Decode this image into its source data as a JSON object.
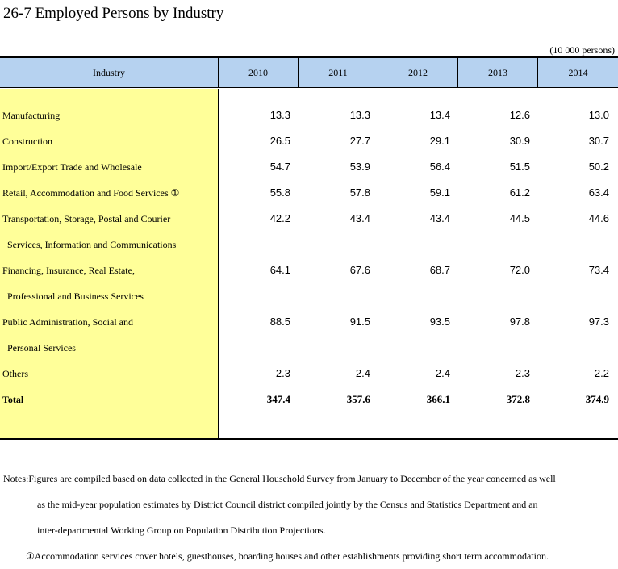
{
  "title": "26-7  Employed Persons by Industry",
  "unit": "(10 000 persons)",
  "table": {
    "header_industry": "Industry",
    "years": [
      "2010",
      "2011",
      "2012",
      "2013",
      "2014"
    ],
    "rows": [
      {
        "label": "Manufacturing",
        "label2": "",
        "values": [
          "13.3",
          "13.3",
          "13.4",
          "12.6",
          "13.0"
        ]
      },
      {
        "label": "Construction",
        "label2": "",
        "values": [
          "26.5",
          "27.7",
          "29.1",
          "30.9",
          "30.7"
        ]
      },
      {
        "label": "Import/Export Trade and Wholesale",
        "label2": "",
        "values": [
          "54.7",
          "53.9",
          "56.4",
          "51.5",
          "50.2"
        ]
      },
      {
        "label": "Retail, Accommodation and Food Services ①",
        "label2": "",
        "values": [
          "55.8",
          "57.8",
          "59.1",
          "61.2",
          "63.4"
        ]
      },
      {
        "label": "Transportation, Storage, Postal and Courier",
        "label2": "Services, Information and Communications",
        "values": [
          "42.2",
          "43.4",
          "43.4",
          "44.5",
          "44.6"
        ]
      },
      {
        "label": "Financing, Insurance, Real Estate,",
        "label2": "Professional and Business Services",
        "values": [
          "64.1",
          "67.6",
          "68.7",
          "72.0",
          "73.4"
        ]
      },
      {
        "label": "Public Administration, Social and",
        "label2": "Personal Services",
        "values": [
          "88.5",
          "91.5",
          "93.5",
          "97.8",
          "97.3"
        ]
      },
      {
        "label": "Others",
        "label2": "",
        "values": [
          "2.3",
          "2.4",
          "2.4",
          "2.3",
          "2.2"
        ]
      },
      {
        "label": "Total",
        "label2": "",
        "values": [
          "347.4",
          "357.6",
          "366.1",
          "372.8",
          "374.9"
        ]
      }
    ]
  },
  "notes": {
    "line1": "Notes:Figures are compiled based on data collected in the General Household Survey from January to December of the year concerned as well",
    "line2": "as the mid-year population estimates by District Council district compiled jointly by the Census and Statistics Department and an",
    "line3": "inter-departmental Working Group on Population Distribution Projections.",
    "footnote": "①Accommodation services cover hotels, guesthouses, boarding houses and other establishments providing short term accommodation."
  }
}
